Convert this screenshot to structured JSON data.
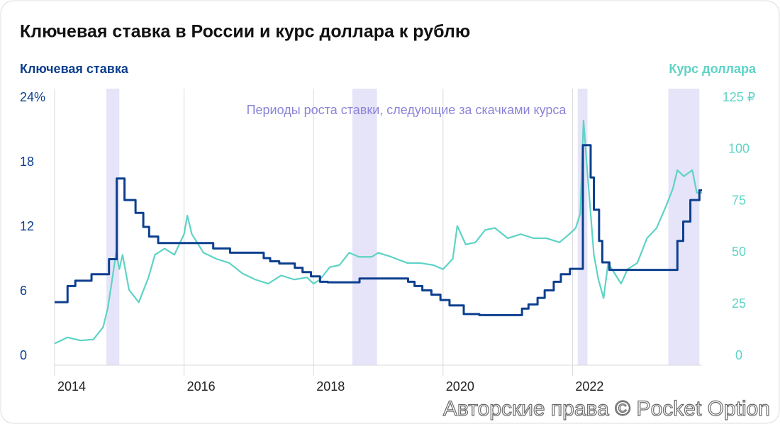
{
  "chart_data": {
    "type": "line",
    "title": "Ключевая ставка в России и курс доллара к рублю",
    "annotation": "Периоды роста ставки, следующие за скачками курса",
    "watermark": "Авторские права © Pocket Option",
    "xlim": [
      2014,
      2024
    ],
    "xticks": [
      2014,
      2016,
      2018,
      2020,
      2022
    ],
    "ylim": [
      0,
      24
    ],
    "yticks": [
      0,
      6,
      12,
      18,
      {
        "value": 24,
        "label": "24%"
      }
    ],
    "y2lim": [
      0,
      125
    ],
    "y2ticks": [
      0,
      25,
      50,
      75,
      100,
      {
        "value": 125,
        "label": "125 ₽"
      }
    ],
    "grid": true,
    "highlight_color": "#e6e4f8",
    "highlight_periods": [
      [
        2014.8,
        2015.0
      ],
      [
        2018.6,
        2018.98
      ],
      [
        2022.08,
        2022.23
      ],
      [
        2023.48,
        2023.96
      ]
    ],
    "series": [
      {
        "name": "Ключевая ставка",
        "color": "#0c3f8e",
        "axis": "y",
        "step": true,
        "x": [
          2014.0,
          2014.2,
          2014.32,
          2014.57,
          2014.84,
          2014.96,
          2015.08,
          2015.25,
          2015.37,
          2015.46,
          2015.6,
          2016.45,
          2016.71,
          2017.23,
          2017.33,
          2017.47,
          2017.71,
          2017.83,
          2017.96,
          2018.1,
          2018.22,
          2018.71,
          2019.46,
          2019.56,
          2019.68,
          2019.82,
          2019.96,
          2020.1,
          2020.32,
          2020.56,
          2021.22,
          2021.32,
          2021.46,
          2021.57,
          2021.71,
          2021.82,
          2021.96,
          2022.16,
          2022.28,
          2022.33,
          2022.41,
          2022.46,
          2022.57,
          2023.55,
          2023.62,
          2023.71,
          2023.82,
          2023.96,
          2024.0
        ],
        "values": [
          5,
          6.5,
          7,
          7.6,
          9,
          16.5,
          14.5,
          13.3,
          12,
          11.1,
          10.5,
          10,
          9.6,
          9.1,
          8.8,
          8.6,
          8.2,
          7.8,
          7.4,
          6.9,
          6.85,
          7.2,
          6.9,
          6.5,
          6.1,
          5.7,
          5.2,
          4.7,
          3.9,
          3.8,
          4.4,
          4.8,
          5.4,
          6.1,
          6.9,
          7.6,
          8.1,
          19.6,
          16.6,
          13.6,
          10.7,
          8.7,
          8,
          8,
          10.7,
          12.5,
          14.5,
          15.4,
          15.4
        ]
      },
      {
        "name": "Курс доллара",
        "color": "#5ed3c5",
        "axis": "y2",
        "step": false,
        "x": [
          2014.0,
          2014.2,
          2014.4,
          2014.6,
          2014.75,
          2014.82,
          2014.88,
          2014.95,
          2015.0,
          2015.05,
          2015.15,
          2015.3,
          2015.45,
          2015.55,
          2015.7,
          2015.85,
          2016.0,
          2016.05,
          2016.12,
          2016.3,
          2016.5,
          2016.7,
          2016.9,
          2017.1,
          2017.3,
          2017.5,
          2017.7,
          2017.9,
          2018.0,
          2018.1,
          2018.25,
          2018.4,
          2018.55,
          2018.7,
          2018.9,
          2019.0,
          2019.2,
          2019.45,
          2019.65,
          2019.85,
          2020.0,
          2020.15,
          2020.22,
          2020.35,
          2020.5,
          2020.65,
          2020.8,
          2021.0,
          2021.2,
          2021.4,
          2021.6,
          2021.8,
          2021.95,
          2022.05,
          2022.12,
          2022.17,
          2022.22,
          2022.28,
          2022.33,
          2022.4,
          2022.48,
          2022.55,
          2022.65,
          2022.75,
          2022.85,
          2023.0,
          2023.15,
          2023.3,
          2023.45,
          2023.55,
          2023.62,
          2023.72,
          2023.85,
          2023.92,
          2024.0
        ],
        "values": [
          6,
          9,
          7.5,
          8,
          14,
          23,
          35,
          50,
          42,
          49,
          32,
          26,
          38,
          49,
          52,
          49,
          59,
          68,
          59,
          50,
          47,
          45,
          40,
          37,
          35,
          39,
          37,
          38,
          35,
          37,
          43,
          44,
          50,
          48,
          48,
          50,
          48,
          45,
          45,
          44,
          42,
          47,
          63,
          54,
          55,
          61,
          62,
          57,
          59,
          57,
          57,
          55,
          59,
          62,
          69,
          114,
          93,
          69,
          49,
          37,
          28,
          45,
          40,
          35,
          42,
          45,
          57,
          62,
          73,
          81,
          90,
          87,
          90,
          79,
          79
        ]
      }
    ]
  }
}
